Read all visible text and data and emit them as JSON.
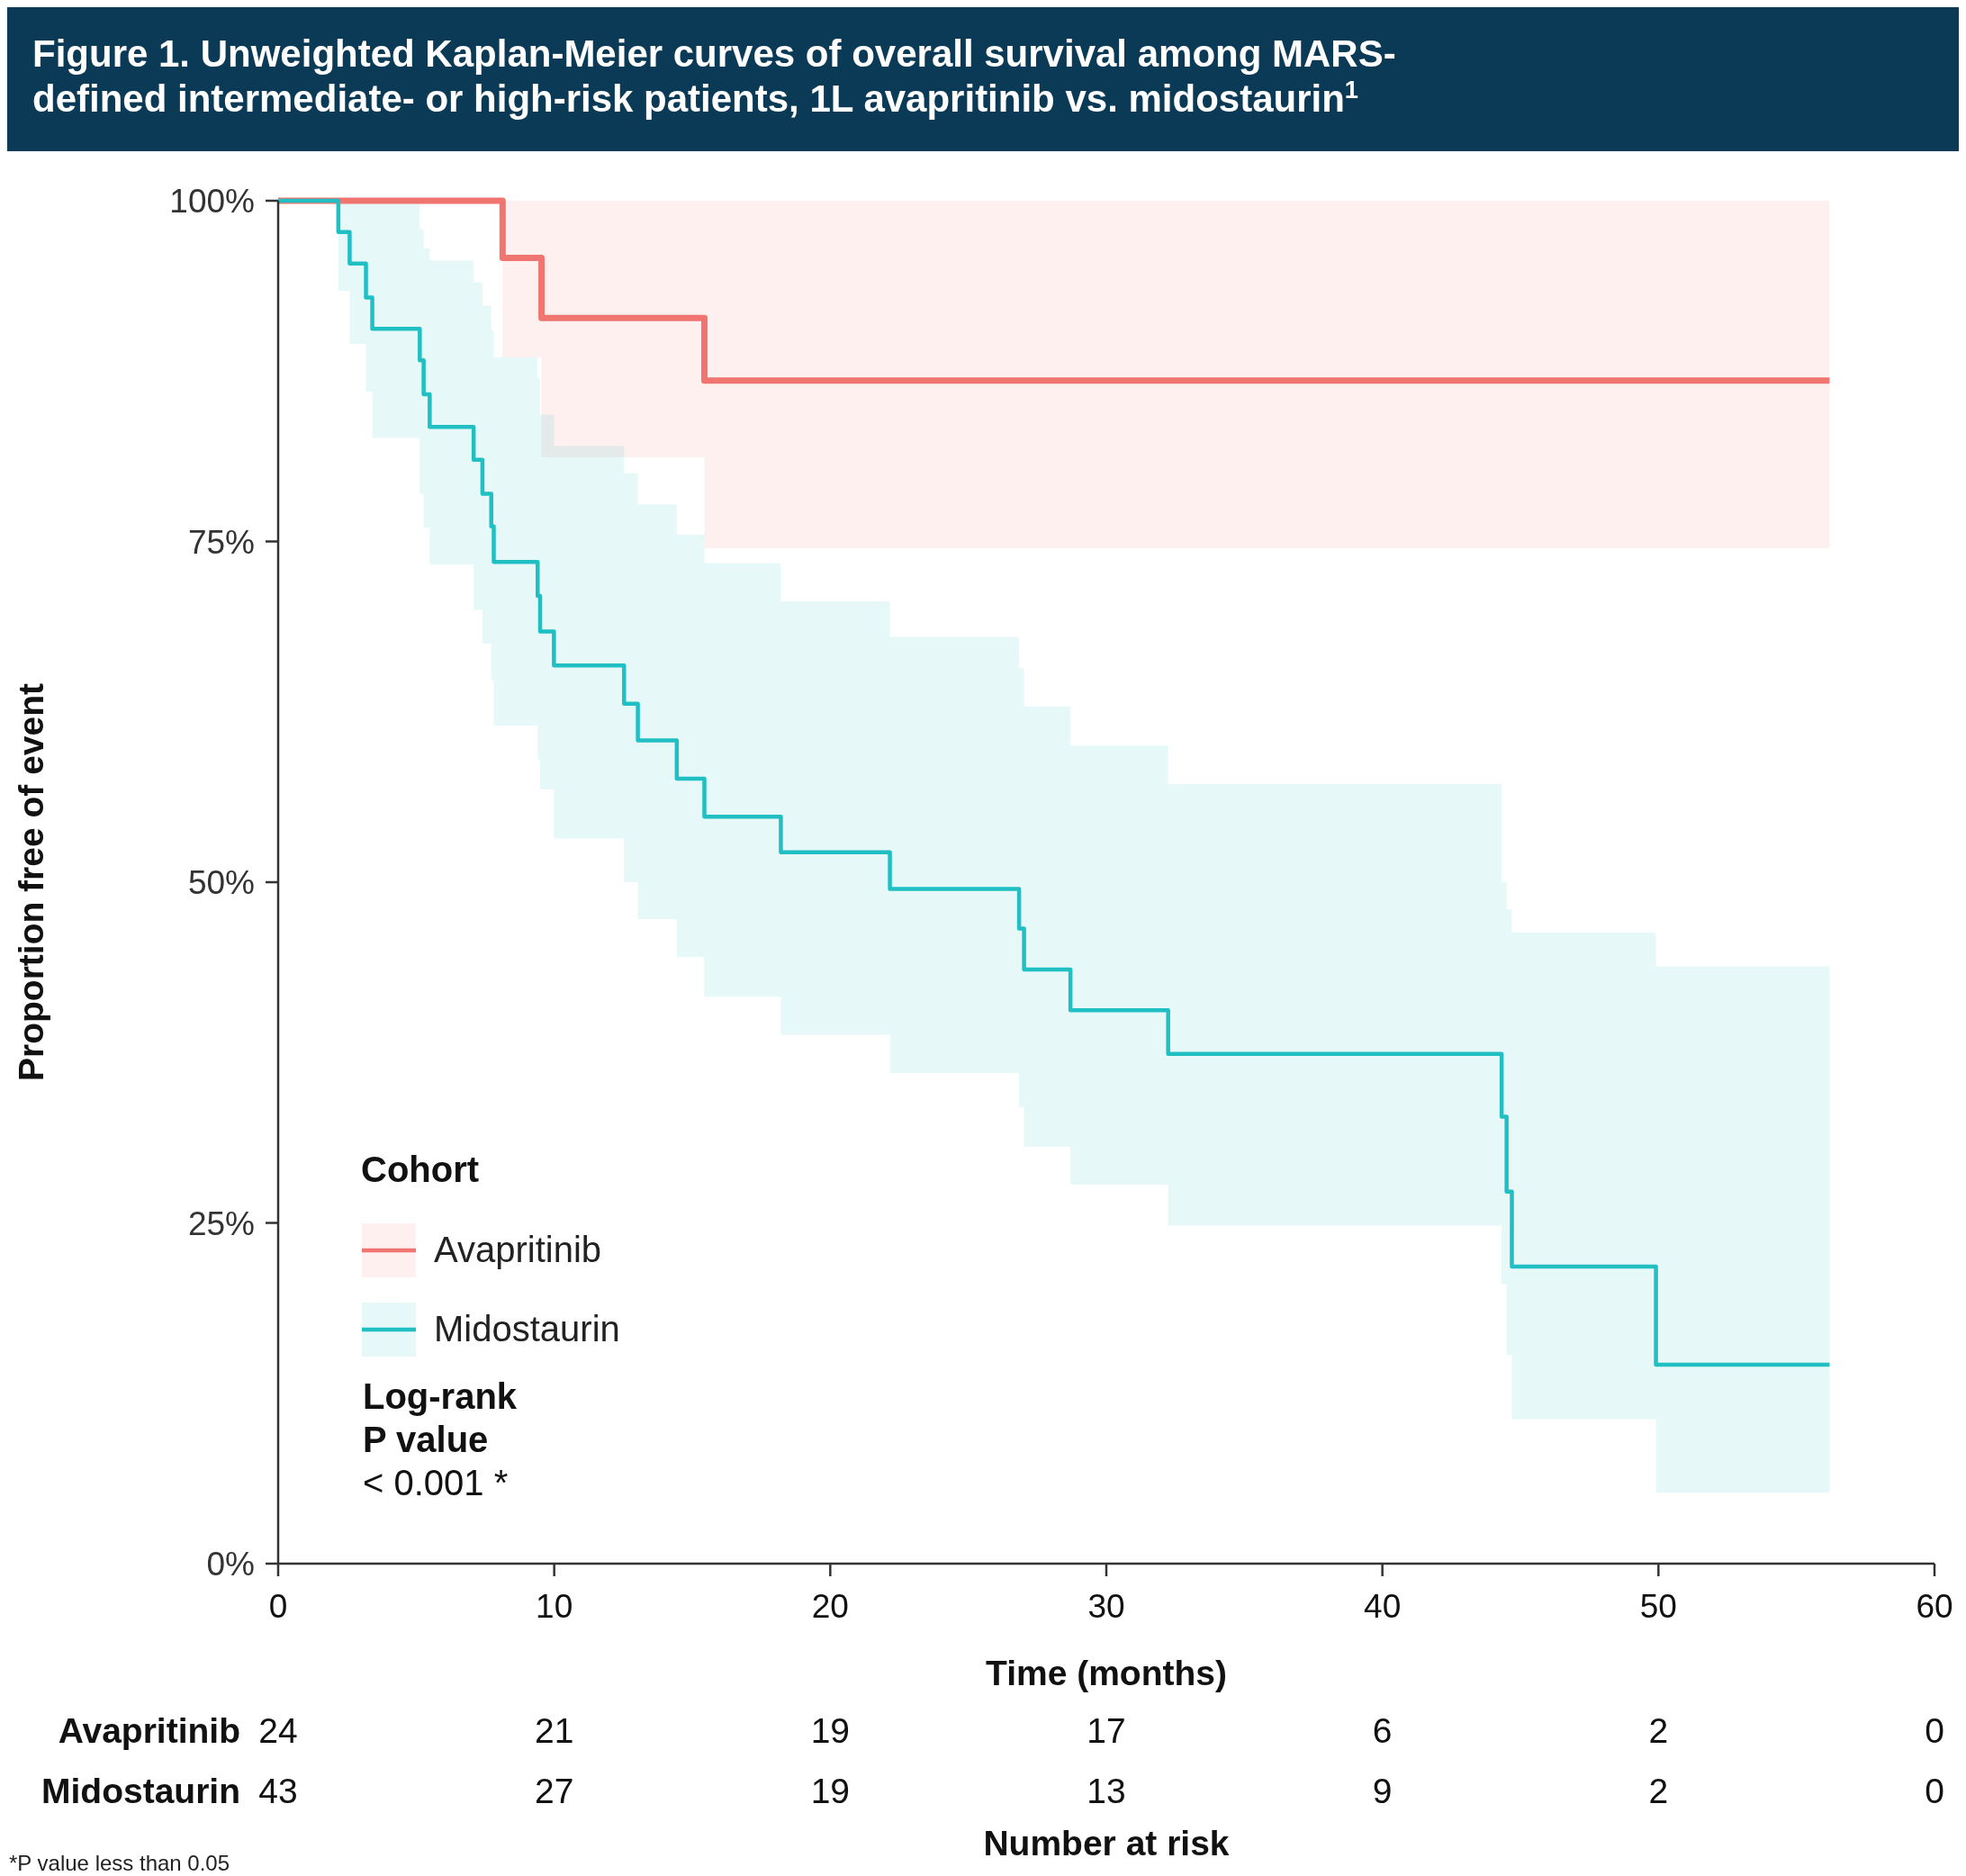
{
  "chart_data": [
    {
      "type": "step",
      "title": "Figure 1. Unweighted Kaplan-Meier curves of overall survival among MARS-defined intermediate- or high-risk patients, 1L avapritinib vs. midostaurin$^{1}$",
      "xlabel": "Time (months)",
      "ylabel": "Proportion free of event",
      "legend_title": "Cohort",
      "legend": "bottom left",
      "grid": false,
      "xlim": [
        0,
        60
      ],
      "xticks": [
        0,
        10,
        20,
        30,
        40,
        50,
        60
      ],
      "ylim": [
        0,
        100
      ],
      "yticks": [
        {
          "value": 0,
          "label": "0%"
        },
        {
          "value": 25,
          "label": "25%"
        },
        {
          "value": 50,
          "label": "50%"
        },
        {
          "value": 75,
          "label": "75%"
        },
        {
          "value": 100,
          "label": "100%"
        }
      ],
      "annotations": [
        "Log-rank",
        "P value",
        "< 0.001 *",
        "*P value less than 0.05"
      ],
      "series": [
        {
          "name": "Avapritinib",
          "color": "#f07470",
          "x": [
            0,
            8.13,
            9.54,
            15.44,
            56.2
          ],
          "values": [
            100,
            95.8,
            91.4,
            86.8,
            86.8
          ],
          "lower": [
            100,
            88.5,
            81.2,
            74.5,
            74.5
          ],
          "upper": [
            100,
            100,
            100,
            100,
            100
          ]
        },
        {
          "name": "Midostaurin",
          "color": "#1fbfc3",
          "x": [
            0,
            2.18,
            2.59,
            3.18,
            3.41,
            5.13,
            5.27,
            5.49,
            7.08,
            7.4,
            7.72,
            7.81,
            9.4,
            9.49,
            9.99,
            12.53,
            13.03,
            14.44,
            15.44,
            18.21,
            22.16,
            26.84,
            27.02,
            28.7,
            32.24,
            44.32,
            44.5,
            44.69,
            49.91,
            56.2
          ],
          "values": [
            100,
            97.7,
            95.4,
            92.9,
            90.6,
            88.3,
            85.8,
            83.4,
            81,
            78.5,
            76.1,
            73.5,
            71,
            68.4,
            65.9,
            63.1,
            60.4,
            57.6,
            54.8,
            52.2,
            49.5,
            46.6,
            43.6,
            40.6,
            37.4,
            32.8,
            27.3,
            21.8,
            14.6,
            14.6
          ],
          "lower": [
            100,
            93.4,
            89.5,
            86,
            82.6,
            78.5,
            76,
            73.3,
            70,
            67.5,
            64.8,
            61.5,
            59,
            56.8,
            53.2,
            50,
            47.3,
            44.5,
            41.6,
            38.8,
            36,
            33.5,
            30.6,
            27.8,
            24.8,
            20.5,
            15.3,
            10.6,
            5.2,
            5.2
          ],
          "upper": [
            100,
            100,
            100,
            100,
            100,
            97.9,
            96.5,
            95.6,
            94,
            92.3,
            90.5,
            88.5,
            87,
            84.3,
            82,
            80,
            77.7,
            75.5,
            73.4,
            70.6,
            68,
            65.7,
            62.9,
            60,
            57.2,
            50,
            48,
            46.3,
            43.8,
            43.8
          ]
        }
      ]
    },
    {
      "type": "heatmap",
      "xlabel": "Number at risk",
      "data_labels": true,
      "categories": [
        null,
        null,
        null,
        null,
        null,
        null,
        null
      ],
      "y_categories": [
        "Avapritinib",
        "Midostaurin"
      ],
      "cells": [
        [
          24,
          21,
          19,
          17,
          6,
          2,
          0
        ],
        [
          43,
          27,
          19,
          13,
          9,
          2,
          0
        ]
      ]
    }
  ]
}
